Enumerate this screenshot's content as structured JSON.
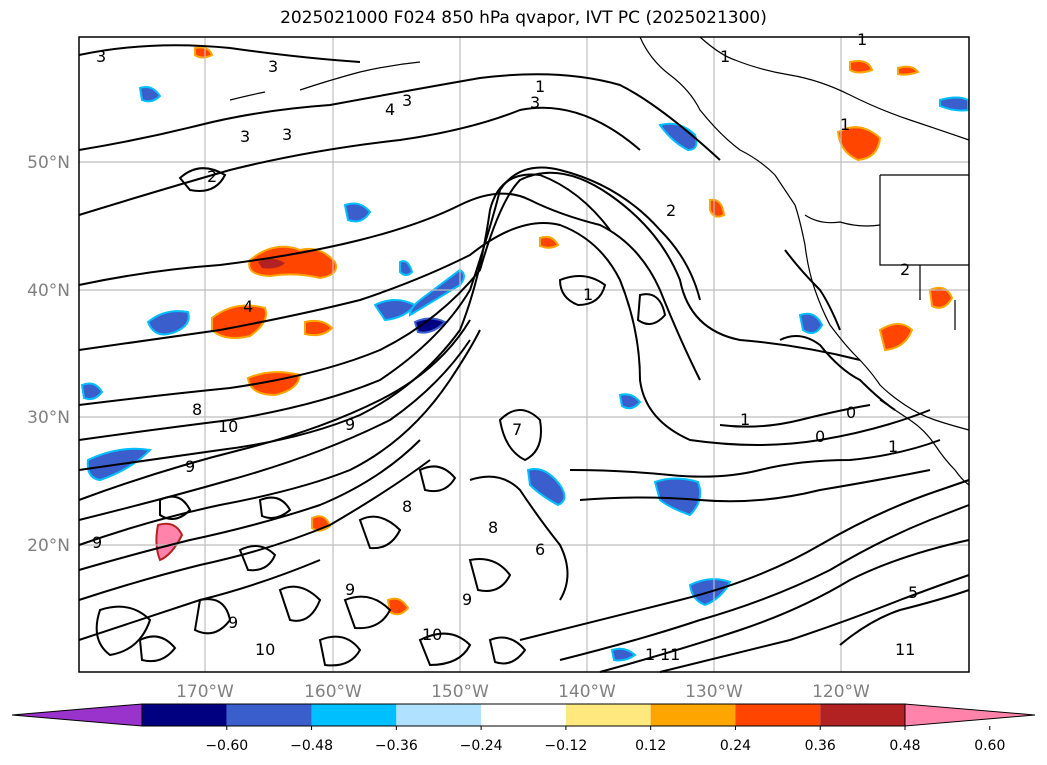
{
  "title": "2025021000 F024 850 hPa qvapor, IVT PC (2025021300)",
  "lat_labels": [
    "50°N",
    "40°N",
    "30°N",
    "20°N"
  ],
  "lon_labels": [
    "170°W",
    "160°W",
    "150°W",
    "140°W",
    "130°W",
    "120°W"
  ],
  "colorbar": {
    "colors": [
      "#9933cc",
      "#000080",
      "#3a5fcd",
      "#00bfff",
      "#b0e2ff",
      "#ffffff",
      "#ffe97f",
      "#ffa500",
      "#ff4500",
      "#b22222",
      "#ff83aa"
    ],
    "tick_labels": [
      "−0.60",
      "−0.48",
      "−0.36",
      "−0.24",
      "−0.12",
      "0.12",
      "0.24",
      "0.36",
      "0.48",
      "0.60"
    ]
  },
  "contour_labels": [
    "3",
    "3",
    "3",
    "4",
    "3",
    "1",
    "3",
    "3",
    "2",
    "2",
    "4",
    "1",
    "7",
    "1",
    "0",
    "0",
    "1",
    "1",
    "8",
    "10",
    "9",
    "9",
    "9",
    "8",
    "9",
    "8",
    "9",
    "10",
    "9",
    "6",
    "1",
    "1",
    "2",
    "5",
    "11",
    "1",
    "11",
    "10"
  ]
}
